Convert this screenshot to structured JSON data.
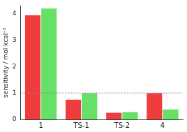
{
  "chart_data": {
    "type": "bar",
    "y_label": "sensitivity / mol kcal⁻¹",
    "categories": [
      "1",
      "TS-1",
      "TS-2",
      "4"
    ],
    "series": [
      {
        "color": "#f03c3c",
        "values": [
          3.95,
          0.75,
          0.25,
          1.0
        ]
      },
      {
        "color": "#66e066",
        "values": [
          4.2,
          1.0,
          0.28,
          0.38
        ]
      }
    ],
    "ylim": [
      0,
      4.3
    ],
    "yticks": [
      0,
      1,
      2,
      3,
      4
    ],
    "grid": false,
    "reference_line": 1
  }
}
